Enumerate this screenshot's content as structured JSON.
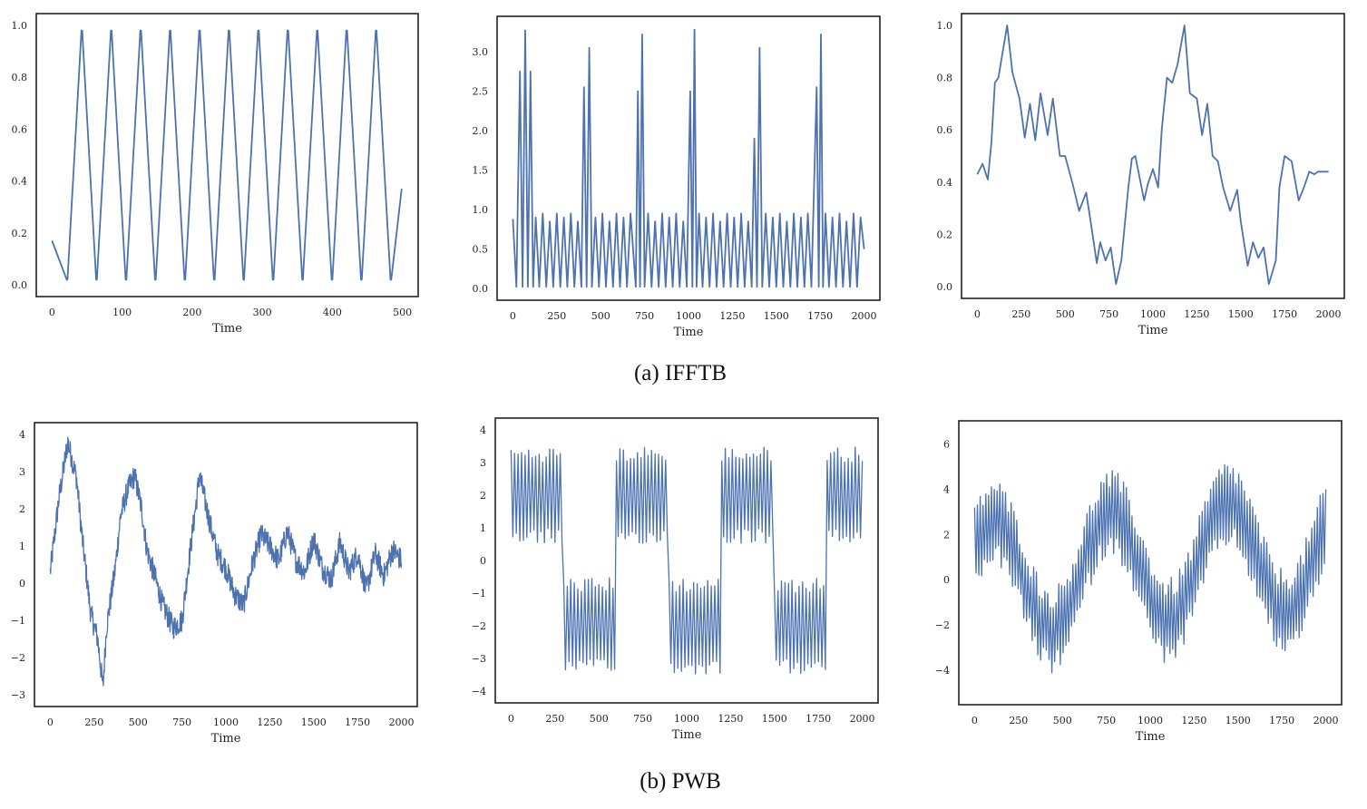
{
  "captions": [
    "(a) IFFTB",
    "(b) PWB"
  ],
  "line_color": "#4c72b0",
  "chart_data": [
    {
      "type": "line",
      "group": "IFFTB",
      "xlabel": "Time",
      "xlim": [
        0,
        500
      ],
      "ylim": [
        0,
        1
      ],
      "xticks": [
        0,
        100,
        200,
        300,
        400,
        500
      ],
      "yticks": [
        0.0,
        0.2,
        0.4,
        0.6,
        0.8,
        1.0
      ],
      "yformat": "1dp",
      "x": [
        0,
        21,
        21,
        22,
        42,
        42,
        43,
        63,
        63,
        64,
        84,
        84,
        85,
        105,
        105,
        106,
        126,
        126,
        127,
        147,
        147,
        148,
        168,
        168,
        169,
        189,
        189,
        190,
        210,
        210,
        211,
        231,
        231,
        232,
        252,
        252,
        253,
        273,
        273,
        274,
        294,
        294,
        295,
        315,
        315,
        316,
        336,
        336,
        337,
        357,
        357,
        358,
        378,
        378,
        379,
        399,
        399,
        400,
        420,
        420,
        421,
        441,
        441,
        442,
        462,
        462,
        463,
        483,
        483,
        484,
        499
      ],
      "y": [
        0.17,
        0.02,
        0.02,
        0.02,
        0.98,
        0.98,
        0.98,
        0.02,
        0.02,
        0.02,
        0.98,
        0.98,
        0.98,
        0.02,
        0.02,
        0.02,
        0.98,
        0.98,
        0.98,
        0.02,
        0.02,
        0.02,
        0.98,
        0.98,
        0.98,
        0.02,
        0.02,
        0.02,
        0.98,
        0.98,
        0.98,
        0.02,
        0.02,
        0.02,
        0.98,
        0.98,
        0.98,
        0.02,
        0.02,
        0.02,
        0.98,
        0.98,
        0.98,
        0.02,
        0.02,
        0.02,
        0.98,
        0.98,
        0.98,
        0.02,
        0.02,
        0.02,
        0.98,
        0.98,
        0.98,
        0.02,
        0.02,
        0.02,
        0.98,
        0.98,
        0.98,
        0.02,
        0.02,
        0.02,
        0.98,
        0.98,
        0.98,
        0.02,
        0.02,
        0.02,
        0.37
      ]
    },
    {
      "type": "line",
      "group": "IFFTB",
      "xlabel": "Time",
      "xlim": [
        0,
        2000
      ],
      "ylim": [
        0,
        3.3
      ],
      "xticks": [
        0,
        250,
        500,
        750,
        1000,
        1250,
        1500,
        1750,
        2000
      ],
      "yticks": [
        0.0,
        0.5,
        1.0,
        1.5,
        2.0,
        2.5,
        3.0
      ],
      "yformat": "1dp",
      "x": [
        0,
        20,
        40,
        55,
        70,
        85,
        100,
        115,
        130,
        150,
        170,
        190,
        210,
        230,
        250,
        270,
        290,
        310,
        330,
        350,
        370,
        390,
        405,
        420,
        435,
        450,
        470,
        490,
        510,
        530,
        550,
        570,
        590,
        610,
        630,
        650,
        670,
        700,
        712,
        724,
        736,
        750,
        770,
        790,
        810,
        830,
        850,
        870,
        890,
        910,
        930,
        950,
        970,
        990,
        1010,
        1022,
        1034,
        1046,
        1060,
        1080,
        1100,
        1120,
        1140,
        1160,
        1180,
        1200,
        1220,
        1240,
        1260,
        1280,
        1300,
        1320,
        1340,
        1360,
        1375,
        1390,
        1405,
        1420,
        1440,
        1460,
        1480,
        1500,
        1520,
        1540,
        1560,
        1580,
        1600,
        1620,
        1640,
        1660,
        1680,
        1700,
        1730,
        1742,
        1754,
        1766,
        1780,
        1800,
        1820,
        1840,
        1860,
        1880,
        1900,
        1920,
        1940,
        1960,
        1980,
        2000
      ],
      "y": [
        0.88,
        0.02,
        2.75,
        0.02,
        3.27,
        0.02,
        2.75,
        0.02,
        0.9,
        0.02,
        0.95,
        0.02,
        0.85,
        0.02,
        0.95,
        0.02,
        0.9,
        0.02,
        0.95,
        0.02,
        0.85,
        0.02,
        2.55,
        0.02,
        3.05,
        0.02,
        0.9,
        0.02,
        0.95,
        0.02,
        0.85,
        0.02,
        0.95,
        0.02,
        0.9,
        0.02,
        0.95,
        0.02,
        2.5,
        0.02,
        3.22,
        0.02,
        0.95,
        0.02,
        0.85,
        0.02,
        0.95,
        0.02,
        0.9,
        0.02,
        0.95,
        0.02,
        0.85,
        0.02,
        2.5,
        0.02,
        3.28,
        0.02,
        0.95,
        0.02,
        0.9,
        0.02,
        0.95,
        0.02,
        0.85,
        0.02,
        0.95,
        0.02,
        0.9,
        0.02,
        0.95,
        0.02,
        0.85,
        0.02,
        1.9,
        0.02,
        3.05,
        0.02,
        0.95,
        0.02,
        0.9,
        0.02,
        0.95,
        0.02,
        0.85,
        0.02,
        0.95,
        0.02,
        0.9,
        0.02,
        0.95,
        0.02,
        2.55,
        0.02,
        3.22,
        0.02,
        0.95,
        0.02,
        0.9,
        0.02,
        0.95,
        0.02,
        0.85,
        0.02,
        0.95,
        0.02,
        0.9,
        0.5
      ]
    },
    {
      "type": "line",
      "group": "IFFTB",
      "xlabel": "Time",
      "xlim": [
        0,
        2000
      ],
      "ylim": [
        0,
        1
      ],
      "xticks": [
        0,
        250,
        500,
        750,
        1000,
        1250,
        1500,
        1750,
        2000
      ],
      "yticks": [
        0.0,
        0.2,
        0.4,
        0.6,
        0.8,
        1.0
      ],
      "yformat": "1dp",
      "x": [
        0,
        30,
        60,
        80,
        100,
        120,
        140,
        170,
        200,
        240,
        270,
        300,
        330,
        360,
        400,
        430,
        470,
        500,
        540,
        580,
        620,
        650,
        680,
        700,
        730,
        760,
        790,
        820,
        860,
        880,
        900,
        950,
        970,
        1000,
        1030,
        1050,
        1080,
        1110,
        1140,
        1180,
        1210,
        1250,
        1280,
        1310,
        1340,
        1370,
        1400,
        1440,
        1480,
        1500,
        1540,
        1570,
        1600,
        1630,
        1660,
        1700,
        1720,
        1750,
        1790,
        1830,
        1860,
        1890,
        1920,
        1940,
        1980,
        2000
      ],
      "y": [
        0.43,
        0.47,
        0.41,
        0.55,
        0.78,
        0.8,
        0.88,
        1.0,
        0.82,
        0.72,
        0.57,
        0.7,
        0.56,
        0.74,
        0.58,
        0.72,
        0.5,
        0.5,
        0.4,
        0.29,
        0.36,
        0.23,
        0.09,
        0.17,
        0.1,
        0.15,
        0.01,
        0.1,
        0.38,
        0.49,
        0.5,
        0.33,
        0.39,
        0.45,
        0.38,
        0.6,
        0.8,
        0.78,
        0.85,
        1.0,
        0.74,
        0.72,
        0.58,
        0.7,
        0.5,
        0.48,
        0.38,
        0.29,
        0.37,
        0.25,
        0.08,
        0.17,
        0.11,
        0.15,
        0.01,
        0.1,
        0.38,
        0.5,
        0.48,
        0.33,
        0.38,
        0.44,
        0.43,
        0.44,
        0.44,
        0.44
      ]
    },
    {
      "type": "line",
      "group": "PWB",
      "xlabel": "Time",
      "xlim": [
        0,
        2000
      ],
      "ylim": [
        -3,
        4
      ],
      "xticks": [
        0,
        250,
        500,
        750,
        1000,
        1250,
        1500,
        1750,
        2000
      ],
      "yticks": [
        -3,
        -2,
        -1,
        0,
        1,
        2,
        3,
        4
      ],
      "yformat": "int",
      "noise_amp": 0.32,
      "x": [
        0,
        50,
        100,
        150,
        180,
        230,
        270,
        300,
        320,
        370,
        400,
        440,
        480,
        520,
        550,
        600,
        640,
        700,
        750,
        800,
        850,
        900,
        950,
        1000,
        1050,
        1100,
        1150,
        1200,
        1250,
        1300,
        1350,
        1400,
        1450,
        1500,
        1550,
        1600,
        1650,
        1700,
        1750,
        1800,
        1850,
        1900,
        1950,
        2000
      ],
      "y": [
        0.3,
        2.3,
        3.8,
        2.8,
        1.3,
        -0.8,
        -1.5,
        -2.8,
        -1.2,
        0.4,
        1.8,
        2.5,
        2.9,
        2.0,
        0.9,
        0.1,
        -0.6,
        -1.2,
        -1.0,
        1.0,
        2.9,
        1.8,
        0.8,
        0.4,
        -0.3,
        -0.6,
        0.5,
        1.3,
        1.0,
        0.6,
        1.4,
        0.6,
        0.3,
        1.2,
        0.4,
        0.1,
        1.1,
        0.3,
        0.8,
        -0.2,
        0.8,
        0.2,
        0.9,
        0.6
      ]
    },
    {
      "type": "line",
      "group": "PWB",
      "xlabel": "Time",
      "xlim": [
        0,
        2000
      ],
      "ylim": [
        -4,
        4
      ],
      "xticks": [
        0,
        250,
        500,
        750,
        1000,
        1250,
        1500,
        1750,
        2000
      ],
      "yticks": [
        -4,
        -3,
        -2,
        -1,
        0,
        1,
        2,
        3,
        4
      ],
      "yformat": "int",
      "pattern": "square_osc",
      "period": 300,
      "high": 2,
      "low": -2,
      "osc_amp": 1.35,
      "osc_step": 10
    },
    {
      "type": "line",
      "group": "PWB",
      "xlabel": "Time",
      "xlim": [
        0,
        2000
      ],
      "ylim": [
        -5,
        6.5
      ],
      "xticks": [
        0,
        250,
        500,
        750,
        1000,
        1250,
        1500,
        1750,
        2000
      ],
      "yticks": [
        -4,
        -2,
        0,
        2,
        4,
        6
      ],
      "yformat": "int",
      "pattern": "sine_osc",
      "sine_period": 667,
      "sine_amp": 2.5,
      "trend_end": 1.2,
      "osc_amp": 1.6,
      "osc_step": 8
    }
  ]
}
